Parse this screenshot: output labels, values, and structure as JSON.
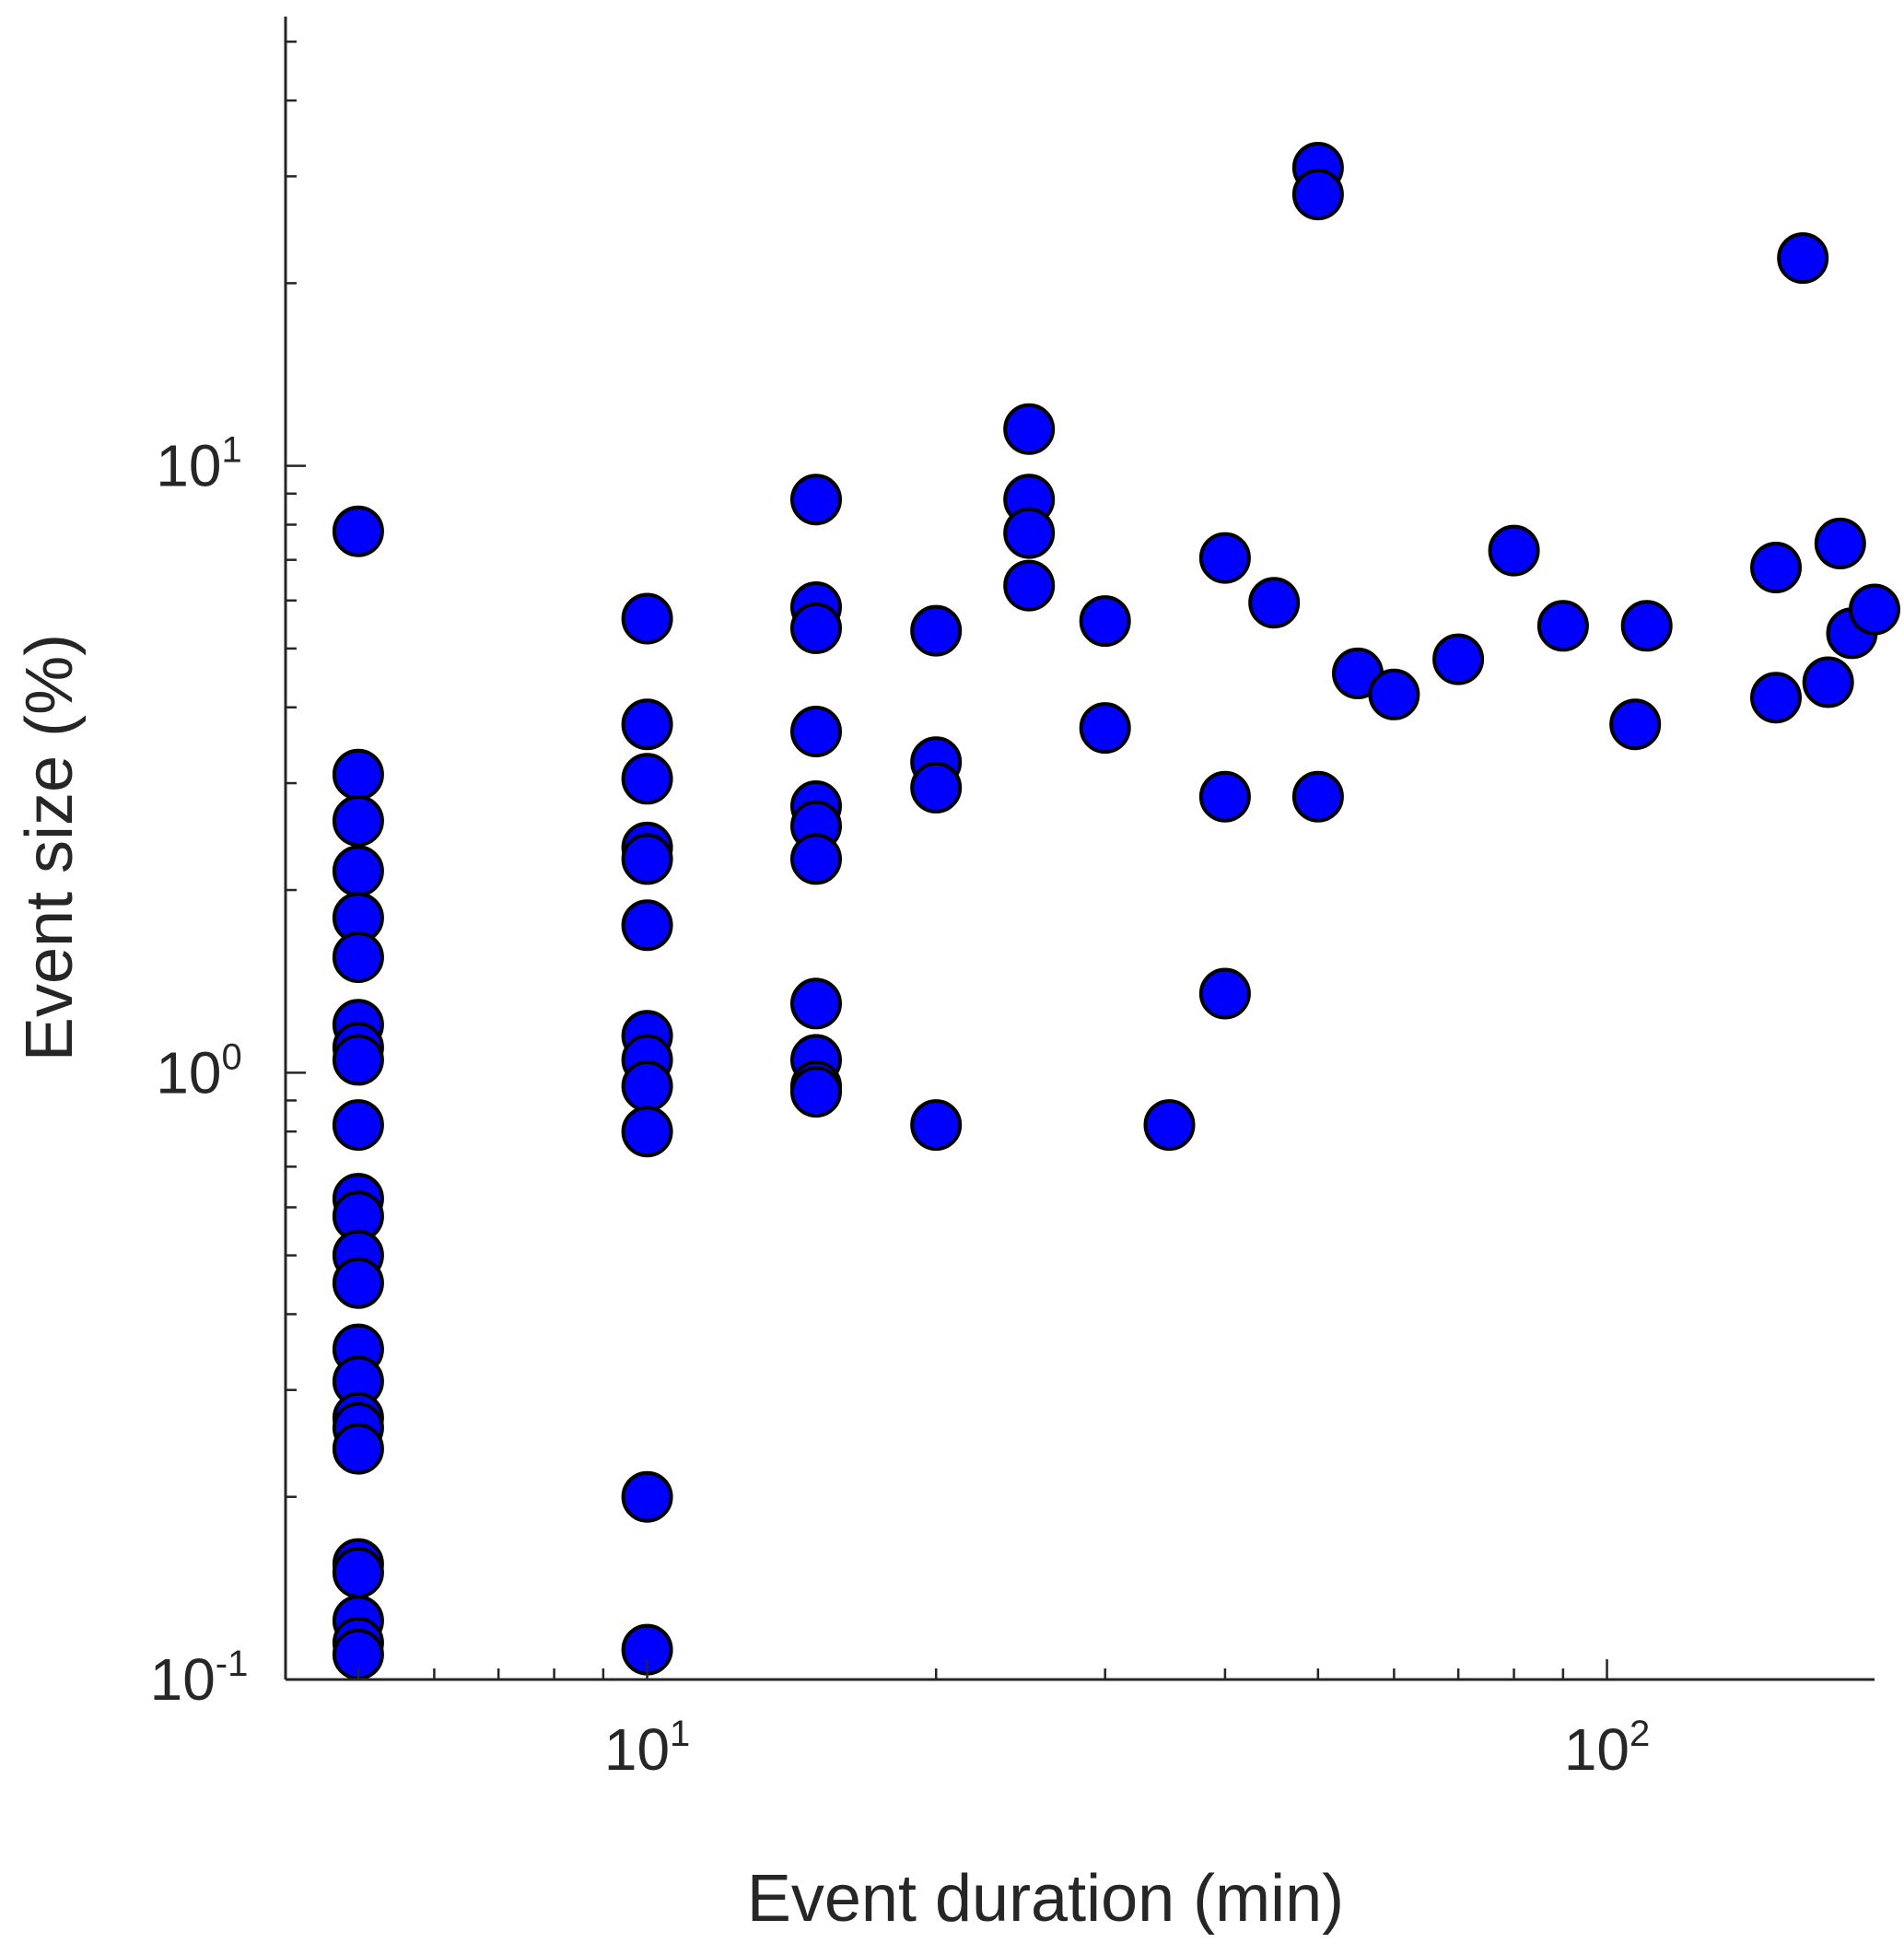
{
  "chart_data": {
    "type": "scatter",
    "xlabel": "Event duration (min)",
    "ylabel": "Event size (%)",
    "x_scale": "log",
    "y_scale": "log",
    "xlim": [
      4.2,
      190
    ],
    "ylim": [
      0.1,
      55
    ],
    "grid": false,
    "x_ticks": [
      {
        "base": "10",
        "exp": "1"
      },
      {
        "base": "10",
        "exp": "2"
      }
    ],
    "y_ticks": [
      {
        "base": "10",
        "exp": "-1"
      },
      {
        "base": "10",
        "exp": "0"
      },
      {
        "base": "10",
        "exp": "1"
      }
    ],
    "marker_color": "#0000ff",
    "marker_edge": "#000000",
    "points": [
      [
        5,
        7.8
      ],
      [
        5,
        3.1
      ],
      [
        5,
        2.6
      ],
      [
        5,
        2.15
      ],
      [
        5,
        1.8
      ],
      [
        5,
        1.55
      ],
      [
        5,
        1.2
      ],
      [
        5,
        1.1
      ],
      [
        5,
        1.05
      ],
      [
        5,
        0.82
      ],
      [
        5,
        0.62
      ],
      [
        5,
        0.58
      ],
      [
        5,
        0.5
      ],
      [
        5,
        0.45
      ],
      [
        5,
        0.35
      ],
      [
        5,
        0.31
      ],
      [
        5,
        0.27
      ],
      [
        5,
        0.26
      ],
      [
        5,
        0.24
      ],
      [
        5,
        0.155
      ],
      [
        5,
        0.15
      ],
      [
        5,
        0.125
      ],
      [
        5,
        0.115
      ],
      [
        5,
        0.11
      ],
      [
        10,
        5.6
      ],
      [
        10,
        3.75
      ],
      [
        10,
        3.05
      ],
      [
        10,
        2.35
      ],
      [
        10,
        2.25
      ],
      [
        10,
        1.75
      ],
      [
        10,
        1.15
      ],
      [
        10,
        1.05
      ],
      [
        10,
        0.95
      ],
      [
        10,
        0.8
      ],
      [
        10,
        0.2
      ],
      [
        10,
        0.112
      ],
      [
        15,
        8.8
      ],
      [
        15,
        5.85
      ],
      [
        15,
        5.4
      ],
      [
        15,
        3.65
      ],
      [
        15,
        2.75
      ],
      [
        15,
        2.55
      ],
      [
        15,
        2.25
      ],
      [
        15,
        1.3
      ],
      [
        15,
        1.05
      ],
      [
        15,
        0.95
      ],
      [
        15,
        0.93
      ],
      [
        20,
        5.35
      ],
      [
        20,
        3.25
      ],
      [
        20,
        2.95
      ],
      [
        20,
        0.82
      ],
      [
        25,
        11.5
      ],
      [
        25,
        8.8
      ],
      [
        25,
        7.75
      ],
      [
        25,
        6.35
      ],
      [
        30,
        5.55
      ],
      [
        30,
        3.7
      ],
      [
        35,
        0.82
      ],
      [
        40,
        7.05
      ],
      [
        40,
        2.85
      ],
      [
        40,
        1.35
      ],
      [
        45,
        5.95
      ],
      [
        50,
        31
      ],
      [
        50,
        28
      ],
      [
        50,
        2.85
      ],
      [
        55,
        4.55
      ],
      [
        60,
        4.2
      ],
      [
        70,
        4.8
      ],
      [
        80,
        7.25
      ],
      [
        90,
        5.45
      ],
      [
        107,
        3.75
      ],
      [
        110,
        5.45
      ],
      [
        150,
        6.8
      ],
      [
        150,
        4.15
      ],
      [
        160,
        22
      ],
      [
        170,
        4.4
      ],
      [
        175,
        7.45
      ],
      [
        180,
        5.3
      ],
      [
        190,
        5.8
      ]
    ]
  }
}
